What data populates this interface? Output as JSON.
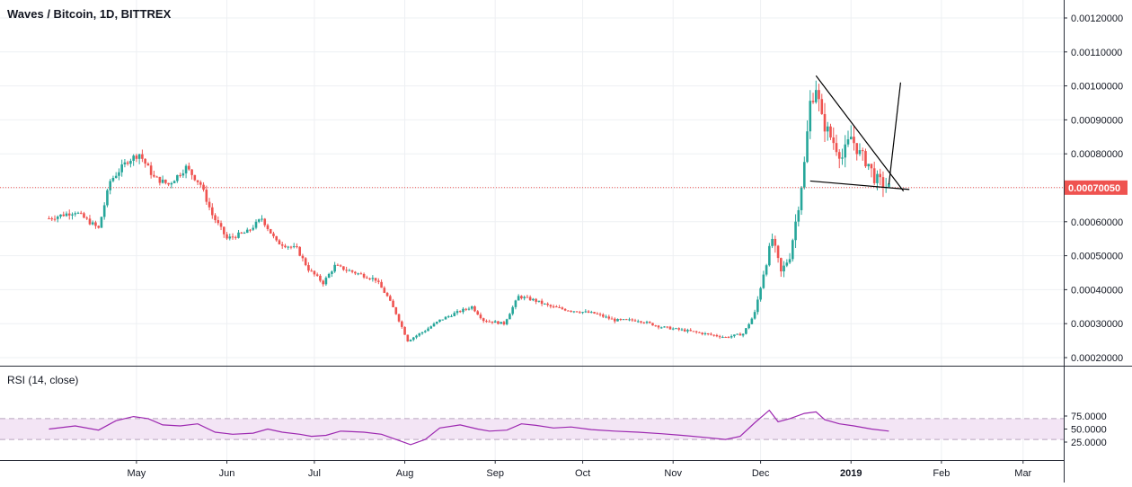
{
  "header": {
    "title": "Waves / Bitcoin, 1D, BITTREX"
  },
  "rsi_panel": {
    "label": "RSI (14, close)"
  },
  "colors": {
    "up": "#26a69a",
    "down": "#ef5350",
    "rsi_line": "#9c27b0",
    "rsi_band": "#f3e5f5",
    "current_price": "#ef5350",
    "trendline": "#000000",
    "grid": "#eef0f3"
  },
  "chart_data": [
    {
      "type": "candlestick",
      "title": "Waves / Bitcoin, 1D, BITTREX",
      "ylim": [
        0.00018,
        0.0012
      ],
      "y_ticks": [
        "0.00020000",
        "0.00030000",
        "0.00040000",
        "0.00050000",
        "0.00060000",
        "0.00070000",
        "0.00080000",
        "0.00090000",
        "0.00100000",
        "0.00110000",
        "0.00120000"
      ],
      "x_ticks": [
        "May",
        "Jun",
        "Jul",
        "Aug",
        "Sep",
        "Oct",
        "Nov",
        "Dec",
        "2019",
        "Feb",
        "Mar"
      ],
      "current_price": "0.00070050",
      "grid": true,
      "close_series": [
        {
          "date": "2018-04-01",
          "close": 0.00061
        },
        {
          "date": "2018-04-10",
          "close": 0.00063
        },
        {
          "date": "2018-04-18",
          "close": 0.00058
        },
        {
          "date": "2018-04-22",
          "close": 0.00072
        },
        {
          "date": "2018-04-28",
          "close": 0.00078
        },
        {
          "date": "2018-05-02",
          "close": 0.0008
        },
        {
          "date": "2018-05-07",
          "close": 0.00073
        },
        {
          "date": "2018-05-12",
          "close": 0.00071
        },
        {
          "date": "2018-05-18",
          "close": 0.00076
        },
        {
          "date": "2018-05-23",
          "close": 0.00071
        },
        {
          "date": "2018-05-27",
          "close": 0.00062
        },
        {
          "date": "2018-06-01",
          "close": 0.00055
        },
        {
          "date": "2018-06-08",
          "close": 0.00057
        },
        {
          "date": "2018-06-13",
          "close": 0.00061
        },
        {
          "date": "2018-06-18",
          "close": 0.00054
        },
        {
          "date": "2018-06-25",
          "close": 0.00052
        },
        {
          "date": "2018-06-29",
          "close": 0.00046
        },
        {
          "date": "2018-07-04",
          "close": 0.00042
        },
        {
          "date": "2018-07-08",
          "close": 0.00047
        },
        {
          "date": "2018-07-15",
          "close": 0.00045
        },
        {
          "date": "2018-07-22",
          "close": 0.00043
        },
        {
          "date": "2018-07-26",
          "close": 0.00038
        },
        {
          "date": "2018-07-29",
          "close": 0.00033
        },
        {
          "date": "2018-08-02",
          "close": 0.00025
        },
        {
          "date": "2018-08-08",
          "close": 0.00028
        },
        {
          "date": "2018-08-13",
          "close": 0.00031
        },
        {
          "date": "2018-08-18",
          "close": 0.00033
        },
        {
          "date": "2018-08-24",
          "close": 0.00035
        },
        {
          "date": "2018-08-28",
          "close": 0.00031
        },
        {
          "date": "2018-09-04",
          "close": 0.0003
        },
        {
          "date": "2018-09-09",
          "close": 0.00038
        },
        {
          "date": "2018-09-14",
          "close": 0.00037
        },
        {
          "date": "2018-09-20",
          "close": 0.00035
        },
        {
          "date": "2018-09-26",
          "close": 0.00034
        },
        {
          "date": "2018-10-05",
          "close": 0.00033
        },
        {
          "date": "2018-10-12",
          "close": 0.00031
        },
        {
          "date": "2018-10-20",
          "close": 0.00031
        },
        {
          "date": "2018-10-28",
          "close": 0.00029
        },
        {
          "date": "2018-11-05",
          "close": 0.00028
        },
        {
          "date": "2018-11-12",
          "close": 0.00027
        },
        {
          "date": "2018-11-19",
          "close": 0.00026
        },
        {
          "date": "2018-11-25",
          "close": 0.00027
        },
        {
          "date": "2018-11-29",
          "close": 0.00033
        },
        {
          "date": "2018-12-02",
          "close": 0.00045
        },
        {
          "date": "2018-12-05",
          "close": 0.00055
        },
        {
          "date": "2018-12-08",
          "close": 0.00045
        },
        {
          "date": "2018-12-11",
          "close": 0.0005
        },
        {
          "date": "2018-12-14",
          "close": 0.00065
        },
        {
          "date": "2018-12-16",
          "close": 0.00077
        },
        {
          "date": "2018-12-18",
          "close": 0.00095
        },
        {
          "date": "2018-12-20",
          "close": 0.001
        },
        {
          "date": "2018-12-22",
          "close": 0.0009
        },
        {
          "date": "2018-12-25",
          "close": 0.00085
        },
        {
          "date": "2018-12-29",
          "close": 0.00079
        },
        {
          "date": "2019-01-01",
          "close": 0.00085
        },
        {
          "date": "2019-01-04",
          "close": 0.0008
        },
        {
          "date": "2019-01-07",
          "close": 0.00077
        },
        {
          "date": "2019-01-09",
          "close": 0.00073
        },
        {
          "date": "2019-01-12",
          "close": 0.00071
        },
        {
          "date": "2019-01-14",
          "close": 0.0007
        }
      ]
    },
    {
      "type": "line",
      "title": "RSI (14, close)",
      "ylim": [
        15,
        92
      ],
      "y_ticks": [
        "25.0000",
        "50.0000",
        "75.0000"
      ],
      "band": [
        30,
        70
      ],
      "series": [
        {
          "values": [
            {
              "date": "2018-04-01",
              "value": 50
            },
            {
              "date": "2018-04-10",
              "value": 56
            },
            {
              "date": "2018-04-18",
              "value": 48
            },
            {
              "date": "2018-04-24",
              "value": 66
            },
            {
              "date": "2018-04-30",
              "value": 74
            },
            {
              "date": "2018-05-05",
              "value": 70
            },
            {
              "date": "2018-05-10",
              "value": 58
            },
            {
              "date": "2018-05-16",
              "value": 56
            },
            {
              "date": "2018-05-22",
              "value": 60
            },
            {
              "date": "2018-05-28",
              "value": 44
            },
            {
              "date": "2018-06-03",
              "value": 40
            },
            {
              "date": "2018-06-10",
              "value": 42
            },
            {
              "date": "2018-06-15",
              "value": 50
            },
            {
              "date": "2018-06-20",
              "value": 44
            },
            {
              "date": "2018-06-26",
              "value": 40
            },
            {
              "date": "2018-06-30",
              "value": 36
            },
            {
              "date": "2018-07-05",
              "value": 38
            },
            {
              "date": "2018-07-10",
              "value": 46
            },
            {
              "date": "2018-07-18",
              "value": 44
            },
            {
              "date": "2018-07-24",
              "value": 40
            },
            {
              "date": "2018-07-28",
              "value": 32
            },
            {
              "date": "2018-08-01",
              "value": 24
            },
            {
              "date": "2018-08-03",
              "value": 20
            },
            {
              "date": "2018-08-08",
              "value": 30
            },
            {
              "date": "2018-08-13",
              "value": 52
            },
            {
              "date": "2018-08-20",
              "value": 58
            },
            {
              "date": "2018-08-26",
              "value": 50
            },
            {
              "date": "2018-08-30",
              "value": 46
            },
            {
              "date": "2018-09-05",
              "value": 48
            },
            {
              "date": "2018-09-10",
              "value": 60
            },
            {
              "date": "2018-09-15",
              "value": 57
            },
            {
              "date": "2018-09-21",
              "value": 52
            },
            {
              "date": "2018-09-27",
              "value": 54
            },
            {
              "date": "2018-10-04",
              "value": 49
            },
            {
              "date": "2018-10-12",
              "value": 46
            },
            {
              "date": "2018-10-20",
              "value": 44
            },
            {
              "date": "2018-10-28",
              "value": 41
            },
            {
              "date": "2018-11-04",
              "value": 38
            },
            {
              "date": "2018-11-12",
              "value": 34
            },
            {
              "date": "2018-11-19",
              "value": 30
            },
            {
              "date": "2018-11-24",
              "value": 36
            },
            {
              "date": "2018-11-29",
              "value": 62
            },
            {
              "date": "2018-12-04",
              "value": 86
            },
            {
              "date": "2018-12-07",
              "value": 64
            },
            {
              "date": "2018-12-11",
              "value": 70
            },
            {
              "date": "2018-12-16",
              "value": 80
            },
            {
              "date": "2018-12-20",
              "value": 83
            },
            {
              "date": "2018-12-23",
              "value": 68
            },
            {
              "date": "2018-12-28",
              "value": 60
            },
            {
              "date": "2019-01-02",
              "value": 56
            },
            {
              "date": "2019-01-08",
              "value": 50
            },
            {
              "date": "2019-01-14",
              "value": 46
            }
          ]
        }
      ]
    }
  ]
}
